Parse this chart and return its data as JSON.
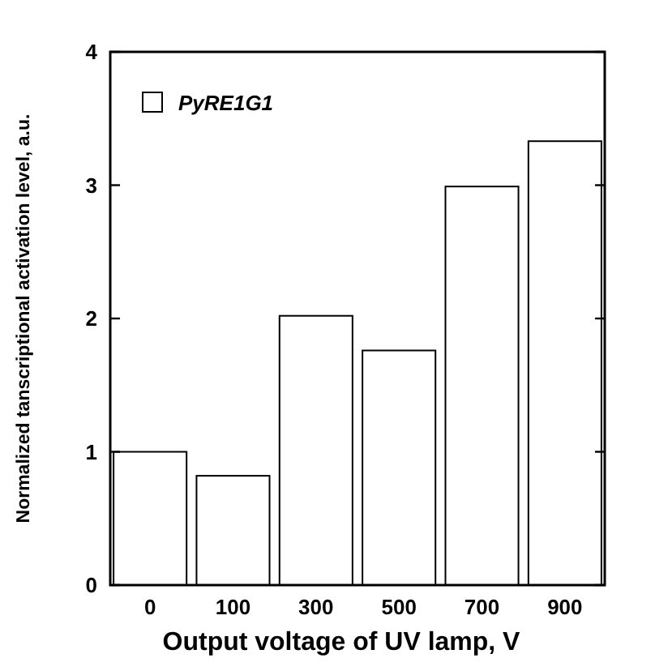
{
  "chart_data": {
    "type": "bar",
    "xlabel": "Output voltage of UV lamp, V",
    "ylabel": "Normalized tanscriptional activation level, a.u.",
    "categories": [
      "0",
      "100",
      "300",
      "500",
      "700",
      "900"
    ],
    "series": [
      {
        "name": "PyRE1G1",
        "color": "#ffffff",
        "values": [
          1.0,
          0.82,
          2.02,
          1.76,
          2.99,
          3.33
        ]
      }
    ],
    "ylim": [
      0,
      4
    ],
    "yticks": [
      0,
      1,
      2,
      3,
      4
    ],
    "grid": false,
    "legend": "top left"
  }
}
